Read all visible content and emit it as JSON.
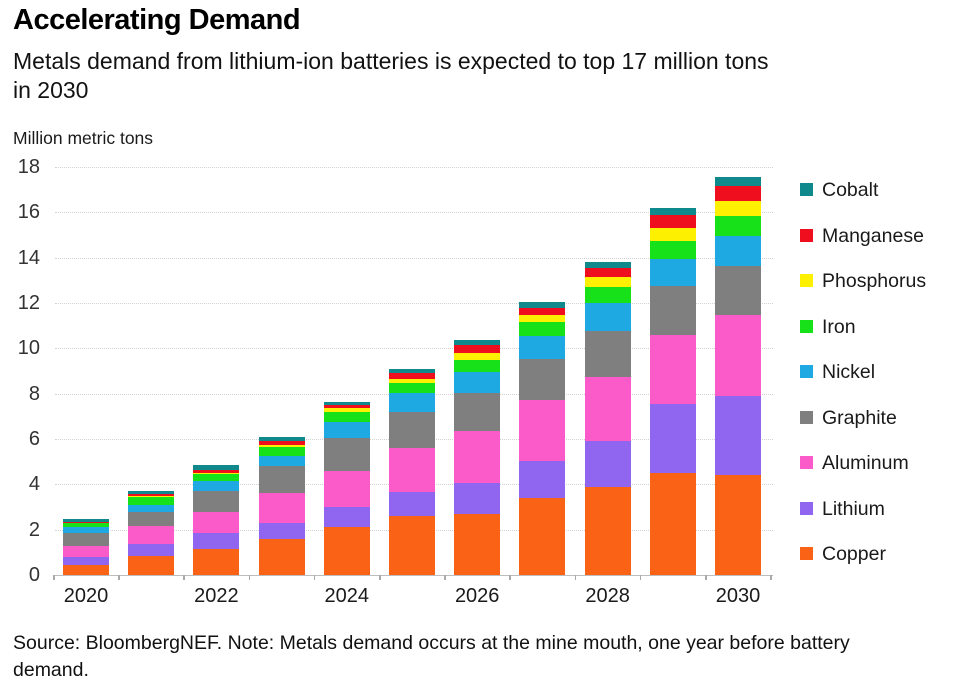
{
  "header": {
    "subtitle_lines": [
      "Metals demand from lithium-ion batteries is expected to top 17 million tons",
      "in 2030"
    ]
  },
  "chart_data": {
    "type": "bar",
    "stacked": true,
    "title": "Accelerating Demand",
    "subtitle": "Metals demand from lithium-ion batteries is expected to top 17 million tons in 2030",
    "ylabel": "Million metric tons",
    "xlabel": "",
    "categories": [
      "2020",
      "2021",
      "2022",
      "2023",
      "2024",
      "2025",
      "2026",
      "2027",
      "2028",
      "2029",
      "2030"
    ],
    "x_axis_labeled_ticks": [
      "2020",
      "2022",
      "2024",
      "2026",
      "2028",
      "2030"
    ],
    "ylim": [
      0,
      18
    ],
    "ytick_step": 2,
    "grid": true,
    "legend_position": "right",
    "stack_note": "series listed top-to-bottom as in legend; Copper is the bottom stack segment",
    "series": [
      {
        "name": "Cobalt",
        "color": "#10898d",
        "values": [
          0.1,
          0.15,
          0.2,
          0.2,
          0.15,
          0.2,
          0.2,
          0.25,
          0.25,
          0.3,
          0.4
        ]
      },
      {
        "name": "Manganese",
        "color": "#ef0e1e",
        "values": [
          0.03,
          0.1,
          0.15,
          0.15,
          0.15,
          0.25,
          0.35,
          0.35,
          0.4,
          0.6,
          0.65
        ]
      },
      {
        "name": "Phosphorus",
        "color": "#fdf000",
        "values": [
          0.02,
          0.02,
          0.05,
          0.1,
          0.15,
          0.2,
          0.3,
          0.3,
          0.45,
          0.55,
          0.65
        ]
      },
      {
        "name": "Iron",
        "color": "#16e119",
        "values": [
          0.2,
          0.35,
          0.3,
          0.4,
          0.45,
          0.4,
          0.55,
          0.6,
          0.7,
          0.8,
          0.9
        ]
      },
      {
        "name": "Nickel",
        "color": "#1fa9e2",
        "values": [
          0.25,
          0.3,
          0.45,
          0.45,
          0.7,
          0.85,
          0.9,
          1.0,
          1.25,
          1.2,
          1.3
        ]
      },
      {
        "name": "Graphite",
        "color": "#7f7f7f",
        "values": [
          0.55,
          0.65,
          0.9,
          1.2,
          1.45,
          1.6,
          1.7,
          1.85,
          2.0,
          2.15,
          2.2
        ]
      },
      {
        "name": "Aluminum",
        "color": "#fb5bc8",
        "values": [
          0.5,
          0.8,
          0.95,
          1.3,
          1.6,
          1.95,
          2.3,
          2.65,
          2.85,
          3.05,
          3.55
        ]
      },
      {
        "name": "Lithium",
        "color": "#9065f0",
        "values": [
          0.35,
          0.5,
          0.7,
          0.7,
          0.9,
          1.05,
          1.35,
          1.65,
          2.0,
          3.05,
          3.5
        ]
      },
      {
        "name": "Copper",
        "color": "#fa6316",
        "values": [
          0.45,
          0.85,
          1.15,
          1.6,
          2.1,
          2.6,
          2.7,
          3.4,
          3.9,
          4.5,
          4.4
        ]
      }
    ],
    "totals": [
      2.45,
      3.72,
      4.85,
      6.1,
      7.65,
      9.1,
      10.35,
      12.05,
      13.8,
      16.2,
      17.55
    ]
  },
  "footer": {
    "source_lines": [
      "Source: BloombergNEF. Note: Metals demand occurs at the mine mouth, one year before battery",
      "demand."
    ]
  }
}
